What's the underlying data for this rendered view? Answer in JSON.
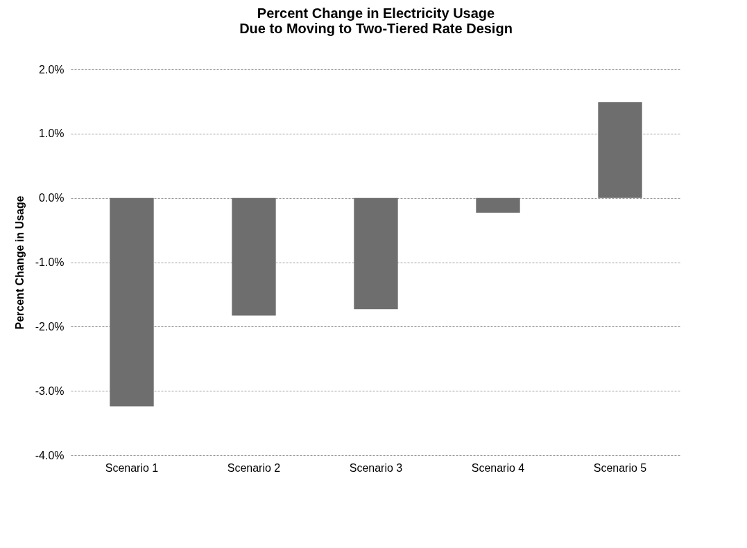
{
  "chart_data": {
    "type": "bar",
    "title": "Percent Change in Electricity Usage\nDue to Moving to Two-Tiered Rate Design",
    "ylabel": "Percent Change in Usage",
    "categories": [
      "Scenario 1",
      "Scenario 2",
      "Scenario 3",
      "Scenario 4",
      "Scenario 5"
    ],
    "values": [
      -3.24,
      -1.83,
      -1.73,
      -0.23,
      1.49
    ],
    "color": "#6e6e6e",
    "ylim": [
      -4,
      2
    ],
    "yticks": [
      {
        "value": -4,
        "label": "-4.0%"
      },
      {
        "value": -3,
        "label": "-3.0%"
      },
      {
        "value": -2,
        "label": "-2.0%"
      },
      {
        "value": -1,
        "label": "-1.0%"
      },
      {
        "value": 0,
        "label": "0.0%"
      },
      {
        "value": 1,
        "label": "1.0%"
      },
      {
        "value": 2,
        "label": "2.0%"
      }
    ],
    "grid": "y"
  }
}
